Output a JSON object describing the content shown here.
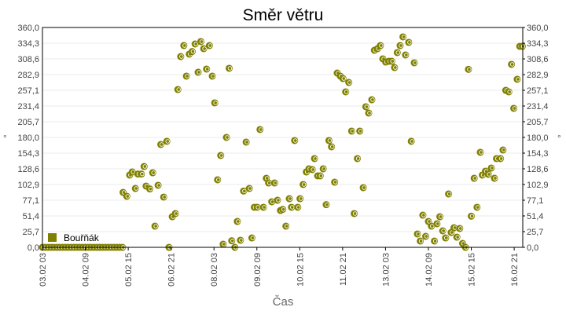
{
  "chart_data": {
    "type": "scatter",
    "title": "Směr větru",
    "xlabel": "Čas",
    "ylabel": "°",
    "ylabel_right": "°",
    "x_unit": "hours since 03.02 03:00",
    "xlim": [
      0,
      336
    ],
    "ylim": [
      0,
      360
    ],
    "grid": true,
    "legend_position": "bottom-left",
    "y_ticks": [
      "0,0",
      "25,7",
      "51,4",
      "77,1",
      "102,9",
      "128,6",
      "154,3",
      "180,0",
      "205,7",
      "231,4",
      "257,1",
      "282,9",
      "308,6",
      "334,3",
      "360,0"
    ],
    "x_ticks": [
      {
        "x": 0,
        "label": "03.02 03"
      },
      {
        "x": 30,
        "label": "04.02 09"
      },
      {
        "x": 60,
        "label": "05.02 15"
      },
      {
        "x": 90,
        "label": "06.02 21"
      },
      {
        "x": 120,
        "label": "08.02 03"
      },
      {
        "x": 150,
        "label": "09.02 09"
      },
      {
        "x": 180,
        "label": "10.02 15"
      },
      {
        "x": 210,
        "label": "11.02 21"
      },
      {
        "x": 240,
        "label": "13.02 03"
      },
      {
        "x": 270,
        "label": "14.02 09"
      },
      {
        "x": 300,
        "label": "15.02 15"
      },
      {
        "x": 330,
        "label": "16.02 21"
      }
    ],
    "series": [
      {
        "name": "Bouřňák",
        "color": "#808000",
        "points": [
          [
            0,
            0
          ],
          [
            2,
            0
          ],
          [
            4,
            0
          ],
          [
            6,
            0
          ],
          [
            8,
            0
          ],
          [
            10,
            0
          ],
          [
            12,
            0
          ],
          [
            14,
            0
          ],
          [
            16,
            0
          ],
          [
            18,
            0
          ],
          [
            20,
            0
          ],
          [
            22,
            0
          ],
          [
            24,
            0
          ],
          [
            26,
            0
          ],
          [
            28,
            0
          ],
          [
            30,
            0
          ],
          [
            32,
            0
          ],
          [
            34,
            0
          ],
          [
            36,
            0
          ],
          [
            38,
            0
          ],
          [
            40,
            0
          ],
          [
            42,
            0
          ],
          [
            44,
            0
          ],
          [
            46,
            0
          ],
          [
            48,
            0
          ],
          [
            50,
            0
          ],
          [
            52,
            0
          ],
          [
            54,
            0
          ],
          [
            56,
            0
          ],
          [
            56.4,
            90
          ],
          [
            59,
            83.6
          ],
          [
            61,
            118.3
          ],
          [
            62.8,
            123.4
          ],
          [
            65,
            96.4
          ],
          [
            66.8,
            120
          ],
          [
            69.2,
            120
          ],
          [
            71.1,
            132.4
          ],
          [
            72.5,
            100.3
          ],
          [
            75.1,
            95.6
          ],
          [
            77.1,
            122.1
          ],
          [
            78.7,
            34.7
          ],
          [
            80.9,
            101.6
          ],
          [
            82.8,
            168.4
          ],
          [
            84.8,
            82.3
          ],
          [
            87,
            173.6
          ],
          [
            88.5,
            0
          ],
          [
            90.8,
            50.1
          ],
          [
            93,
            55.3
          ],
          [
            94.7,
            258.4
          ],
          [
            96.7,
            312.4
          ],
          [
            98.9,
            330.4
          ],
          [
            100.7,
            280.3
          ],
          [
            102.7,
            316.3
          ],
          [
            104.7,
            320.6
          ],
          [
            106.8,
            333
          ],
          [
            108.9,
            286.7
          ],
          [
            110.8,
            336.9
          ],
          [
            112.8,
            325.3
          ],
          [
            114.8,
            291.9
          ],
          [
            116.8,
            330.4
          ],
          [
            118.8,
            280.3
          ],
          [
            120.5,
            236.6
          ],
          [
            122.5,
            110.6
          ],
          [
            124.7,
            150.4
          ],
          [
            126.4,
            5.1
          ],
          [
            128.7,
            180
          ],
          [
            130.6,
            293.2
          ],
          [
            132.4,
            10.7
          ],
          [
            134.6,
            0
          ],
          [
            136.3,
            42.4
          ],
          [
            138.5,
            11.6
          ],
          [
            140.7,
            92.1
          ],
          [
            142.5,
            172.3
          ],
          [
            144.7,
            96.4
          ],
          [
            146.5,
            15.4
          ],
          [
            148.2,
            65.6
          ],
          [
            150.2,
            65.6
          ],
          [
            152.2,
            192.9
          ],
          [
            154.6,
            65.6
          ],
          [
            156.6,
            113.1
          ],
          [
            158.2,
            105.4
          ],
          [
            160.4,
            74.6
          ],
          [
            162.4,
            105.4
          ],
          [
            164.4,
            77.1
          ],
          [
            166.5,
            60.4
          ],
          [
            168.1,
            62.1
          ],
          [
            170.3,
            34.7
          ],
          [
            172.7,
            79.7
          ],
          [
            174.2,
            65.6
          ],
          [
            176.4,
            174.9
          ],
          [
            178.6,
            65.6
          ],
          [
            180.2,
            79.7
          ],
          [
            182.4,
            102.9
          ],
          [
            184.6,
            123.4
          ],
          [
            186.4,
            128.6
          ],
          [
            188.7,
            127.3
          ],
          [
            190.3,
            145.3
          ],
          [
            192.5,
            117
          ],
          [
            194.3,
            117
          ],
          [
            196.4,
            128.6
          ],
          [
            198.5,
            69.9
          ],
          [
            200.4,
            174.9
          ],
          [
            202.2,
            164.6
          ],
          [
            204.4,
            106.7
          ],
          [
            206.2,
            285.4
          ],
          [
            208.4,
            280.3
          ],
          [
            210.2,
            276.4
          ],
          [
            212.1,
            254.6
          ],
          [
            214.3,
            270
          ],
          [
            216.3,
            190.3
          ],
          [
            218.1,
            55.3
          ],
          [
            220.3,
            145.3
          ],
          [
            222,
            190.3
          ],
          [
            224.4,
            97.7
          ],
          [
            226.2,
            230.2
          ],
          [
            228.2,
            219.9
          ],
          [
            230.4,
            241.7
          ],
          [
            232.2,
            322.7
          ],
          [
            234.4,
            325.3
          ],
          [
            236.4,
            330.4
          ],
          [
            238.1,
            308.6
          ],
          [
            240.1,
            303.4
          ],
          [
            242.3,
            304.7
          ],
          [
            244.3,
            304.7
          ],
          [
            246.3,
            294.4
          ],
          [
            248.2,
            318.9
          ],
          [
            250.2,
            330.4
          ],
          [
            252.2,
            344.6
          ],
          [
            254,
            315
          ],
          [
            256.2,
            335.6
          ],
          [
            258,
            173.6
          ],
          [
            260.1,
            302.2
          ],
          [
            262.3,
            21.9
          ],
          [
            264.3,
            10.3
          ],
          [
            266.1,
            52.7
          ],
          [
            268.1,
            18
          ],
          [
            270,
            42.4
          ],
          [
            272.1,
            34.7
          ],
          [
            274.2,
            10.3
          ],
          [
            276,
            38.6
          ],
          [
            278,
            50.1
          ],
          [
            280,
            27
          ],
          [
            282,
            15.4
          ],
          [
            284.1,
            87.4
          ],
          [
            285.9,
            24.4
          ],
          [
            287.9,
            32.1
          ],
          [
            289.9,
            16.7
          ],
          [
            291.9,
            30.9
          ],
          [
            293.9,
            6.4
          ],
          [
            295.9,
            0
          ],
          [
            298,
            291.4
          ],
          [
            300,
            51
          ],
          [
            302,
            113.1
          ],
          [
            304,
            65.6
          ],
          [
            306.3,
            155.6
          ],
          [
            307.7,
            118.3
          ],
          [
            309.9,
            124.7
          ],
          [
            311.9,
            119.6
          ],
          [
            314,
            129.9
          ],
          [
            316.2,
            113.1
          ],
          [
            317.6,
            145.3
          ],
          [
            320.4,
            145.3
          ],
          [
            322.2,
            159.4
          ],
          [
            324.1,
            257.1
          ],
          [
            326.2,
            254.6
          ],
          [
            328.1,
            299.6
          ],
          [
            329.7,
            227.6
          ],
          [
            332.1,
            275.2
          ],
          [
            333.9,
            329.1
          ],
          [
            335.7,
            329.1
          ]
        ]
      }
    ]
  }
}
